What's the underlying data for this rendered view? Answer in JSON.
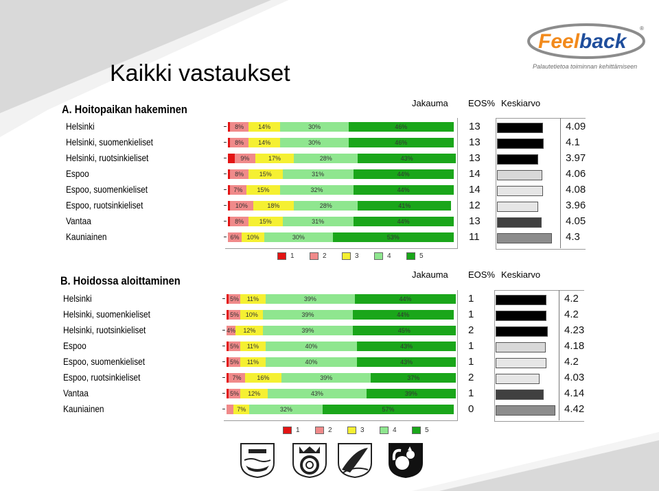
{
  "page": {
    "title": "Kaikki vastaukset"
  },
  "logo": {
    "brand_part1": "Feel",
    "brand_part2": "back",
    "registered": "®",
    "tagline": "Palautetietoa toiminnan kehittämiseen",
    "colors": {
      "orange": "#f28a1c",
      "blue": "#1f4e9c",
      "gray": "#8c8c8c"
    }
  },
  "headers": {
    "distribution": "Jakauma",
    "eos": "EOS%",
    "mean": "Keskiarvo"
  },
  "legend": [
    "1",
    "2",
    "3",
    "4",
    "5"
  ],
  "colors": {
    "s1": "#e31414",
    "s2": "#f08a8a",
    "s3": "#f5f032",
    "s4": "#8fe68f",
    "s5": "#1aa61a"
  },
  "crests": [
    "helsinki-crest",
    "espoo-crest",
    "vantaa-crest",
    "kauniainen-crest"
  ],
  "chart_data": [
    {
      "type": "bar",
      "title": "A. Hoitopaikan hakeminen",
      "categories": [
        "Helsinki",
        "Helsinki, suomenkieliset",
        "Helsinki, ruotsinkieliset",
        "Espoo",
        "Espoo, suomenkieliset",
        "Espoo, ruotsinkieliset",
        "Vantaa",
        "Kauniainen"
      ],
      "stacked_percent": [
        [
          1,
          8,
          14,
          30,
          46
        ],
        [
          1,
          8,
          14,
          30,
          46
        ],
        [
          3,
          9,
          17,
          28,
          43
        ],
        [
          1,
          8,
          15,
          31,
          44
        ],
        [
          1,
          7,
          15,
          32,
          44
        ],
        [
          1,
          10,
          18,
          28,
          41
        ],
        [
          1,
          8,
          15,
          31,
          44
        ],
        [
          0,
          6,
          10,
          30,
          53
        ]
      ],
      "labels": [
        [
          "",
          "8%",
          "14%",
          "30%",
          "46%"
        ],
        [
          "",
          "8%",
          "14%",
          "30%",
          "46%"
        ],
        [
          "",
          "9%",
          "17%",
          "28%",
          "43%"
        ],
        [
          "",
          "8%",
          "15%",
          "31%",
          "44%"
        ],
        [
          "",
          "7%",
          "15%",
          "32%",
          "44%"
        ],
        [
          "",
          "10%",
          "18%",
          "28%",
          "41%"
        ],
        [
          "",
          "8%",
          "15%",
          "31%",
          "44%"
        ],
        [
          "",
          "6%",
          "10%",
          "30%",
          "53%"
        ]
      ],
      "eos": [
        "13",
        "13",
        "13",
        "14",
        "14",
        "12",
        "13",
        "11"
      ],
      "means": [
        "4.09",
        "4.1",
        "3.97",
        "4.06",
        "4.08",
        "3.96",
        "4.05",
        "4.3"
      ],
      "mean_values": [
        4.09,
        4.1,
        3.97,
        4.06,
        4.08,
        3.96,
        4.05,
        4.3
      ],
      "mean_colors": [
        "#000000",
        "#000000",
        "#000000",
        "#d8d8d8",
        "#e6e6e6",
        "#e6e6e6",
        "#404040",
        "#8c8c8c"
      ],
      "legend": [
        "1",
        "2",
        "3",
        "4",
        "5"
      ]
    },
    {
      "type": "bar",
      "title": "B. Hoidossa aloittaminen",
      "categories": [
        "Helsinki",
        "Helsinki, suomenkieliset",
        "Helsinki, ruotsinkieliset",
        "Espoo",
        "Espoo, suomenkieliset",
        "Espoo, ruotsinkieliset",
        "Vantaa",
        "Kauniainen"
      ],
      "stacked_percent": [
        [
          1,
          5,
          11,
          39,
          44
        ],
        [
          1,
          5,
          10,
          39,
          44
        ],
        [
          0,
          4,
          12,
          39,
          45
        ],
        [
          1,
          5,
          11,
          40,
          43
        ],
        [
          1,
          5,
          11,
          40,
          43
        ],
        [
          1,
          7,
          16,
          39,
          37
        ],
        [
          1,
          5,
          12,
          43,
          39
        ],
        [
          0,
          3,
          7,
          32,
          57
        ]
      ],
      "labels": [
        [
          "",
          "5%",
          "11%",
          "39%",
          "44%"
        ],
        [
          "",
          "5%",
          "10%",
          "39%",
          "44%"
        ],
        [
          "",
          "4%",
          "12%",
          "39%",
          "45%"
        ],
        [
          "",
          "5%",
          "11%",
          "40%",
          "43%"
        ],
        [
          "",
          "5%",
          "11%",
          "40%",
          "43%"
        ],
        [
          "",
          "7%",
          "16%",
          "39%",
          "37%"
        ],
        [
          "",
          "5%",
          "12%",
          "43%",
          "39%"
        ],
        [
          "",
          "",
          "7%",
          "32%",
          "57%"
        ]
      ],
      "eos": [
        "1",
        "1",
        "2",
        "1",
        "1",
        "2",
        "1",
        "0"
      ],
      "means": [
        "4.2",
        "4.2",
        "4.23",
        "4.18",
        "4.2",
        "4.03",
        "4.14",
        "4.42"
      ],
      "mean_values": [
        4.2,
        4.2,
        4.23,
        4.18,
        4.2,
        4.03,
        4.14,
        4.42
      ],
      "mean_colors": [
        "#000000",
        "#000000",
        "#000000",
        "#d8d8d8",
        "#e6e6e6",
        "#e6e6e6",
        "#404040",
        "#8c8c8c"
      ],
      "legend": [
        "1",
        "2",
        "3",
        "4",
        "5"
      ]
    }
  ]
}
